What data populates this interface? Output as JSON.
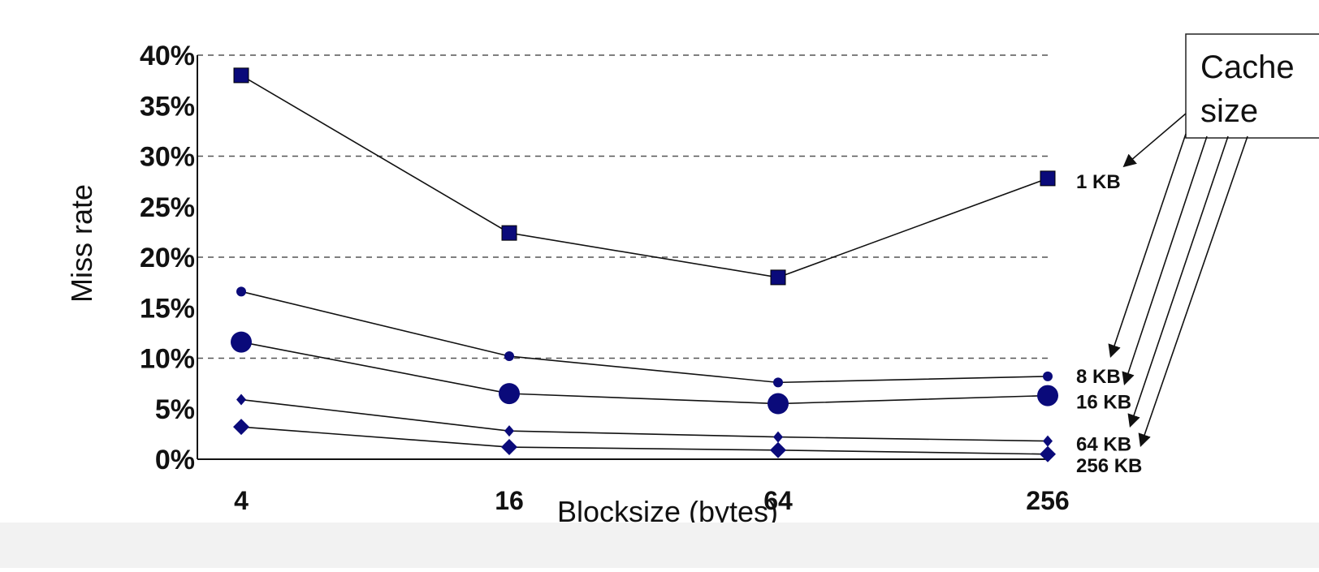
{
  "chart_data": {
    "type": "line",
    "xlabel": "Blocksize (bytes)",
    "ylabel": "Miss rate",
    "x_categories": [
      "4",
      "16",
      "64",
      "256"
    ],
    "y_ticks": [
      "0%",
      "5%",
      "10%",
      "15%",
      "20%",
      "25%",
      "30%",
      "35%",
      "40%"
    ],
    "ylim": [
      0,
      40
    ],
    "grid": "dashed horizontal at 10%, 20%, 30%, 40%",
    "legend_title": "Cache size",
    "series": [
      {
        "name": "1 KB",
        "marker": "square",
        "values": [
          38.0,
          22.4,
          18.0,
          27.8
        ]
      },
      {
        "name": "8 KB",
        "marker": "small-circle",
        "values": [
          16.6,
          10.2,
          7.6,
          8.2
        ]
      },
      {
        "name": "16 KB",
        "marker": "large-circle",
        "values": [
          11.6,
          6.5,
          5.5,
          6.3
        ]
      },
      {
        "name": "64 KB",
        "marker": "small-diamond",
        "values": [
          5.9,
          2.8,
          2.2,
          1.8
        ]
      },
      {
        "name": "256 KB",
        "marker": "diamond",
        "values": [
          3.2,
          1.2,
          0.9,
          0.5
        ]
      }
    ],
    "colors": {
      "marker": "#0a0a7a",
      "line": "#111111",
      "grid": "#555555"
    }
  }
}
